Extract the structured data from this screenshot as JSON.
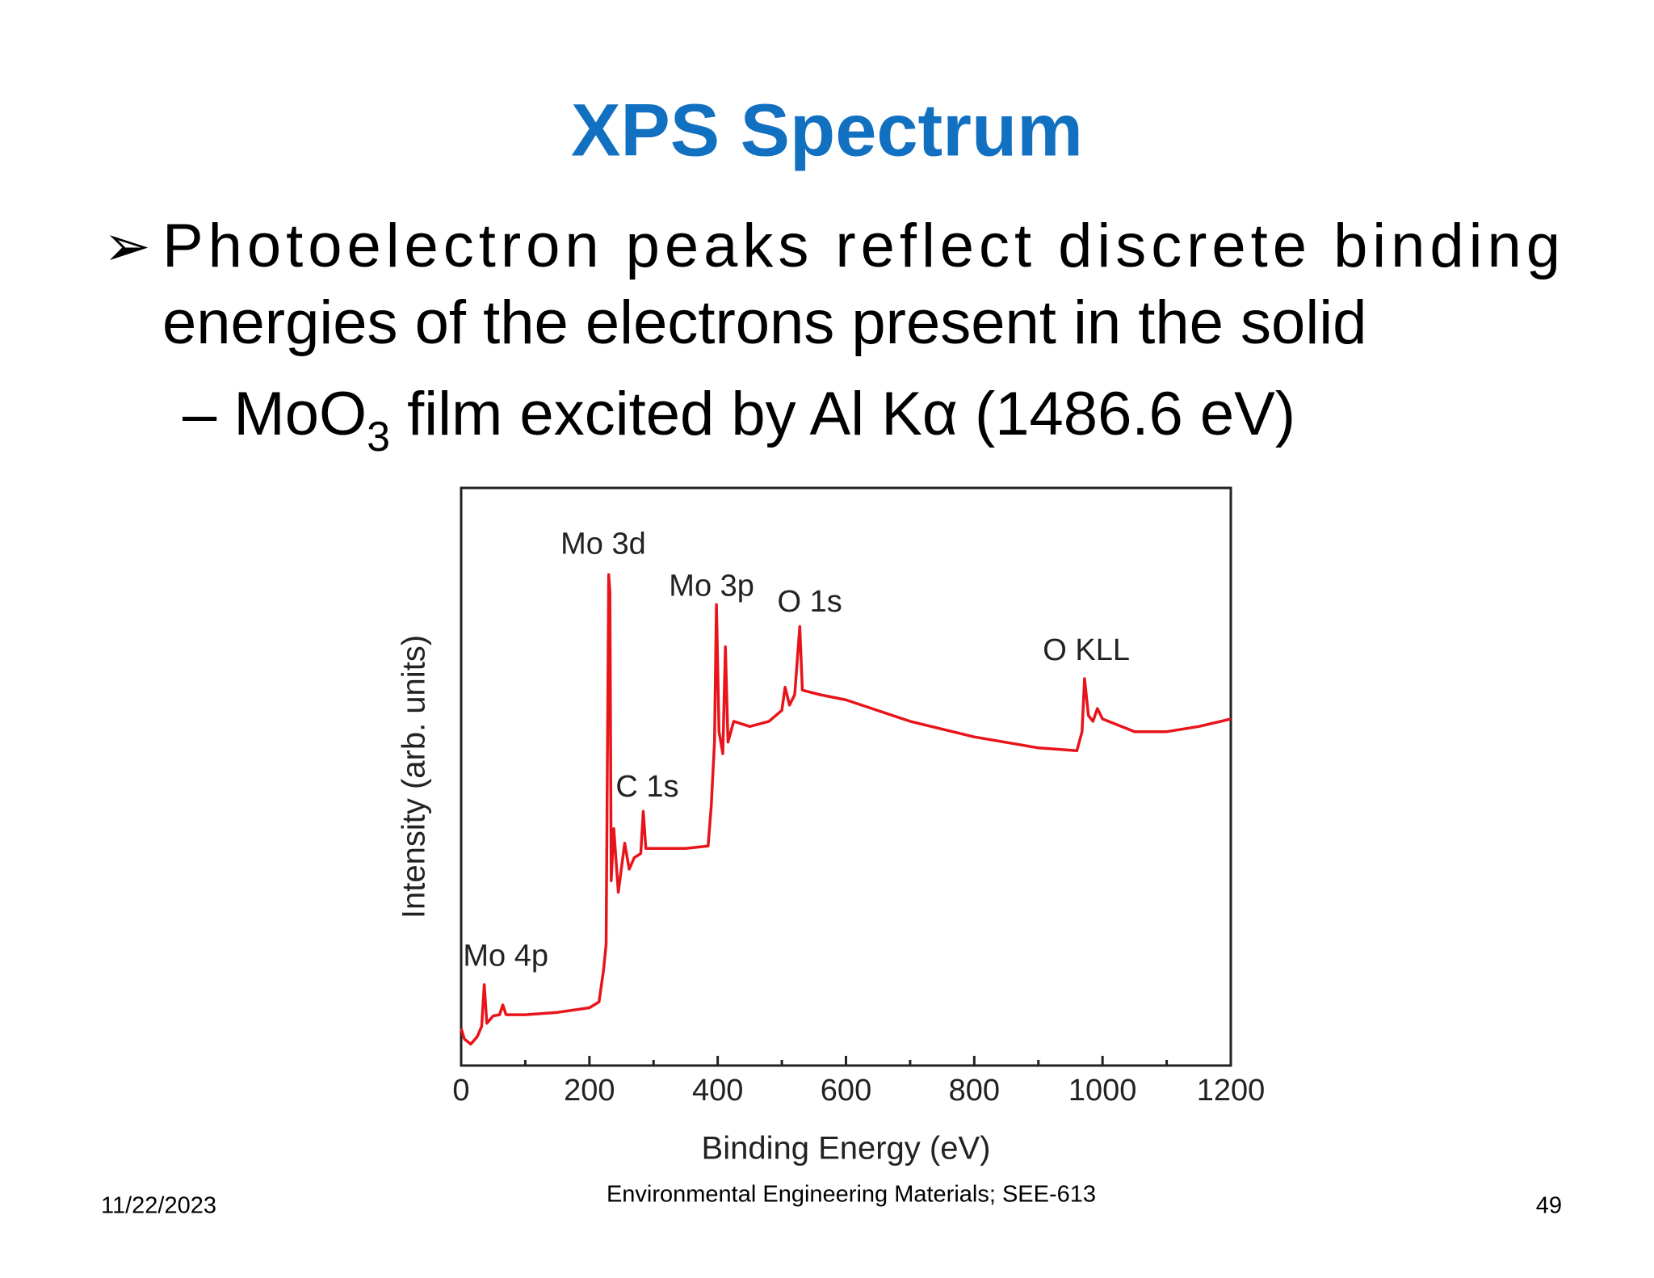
{
  "slide": {
    "title": "XPS Spectrum",
    "bullet": "Photoelectron peaks reflect discrete binding",
    "bullet_cont": "energies of the electrons present in the solid",
    "sub_bullet": {
      "prefix": "– MoO",
      "subscript": "3",
      "suffix": " film excited by Al Kα (1486.6 eV)"
    },
    "footer": {
      "date": "11/22/2023",
      "course": "Environmental Engineering Materials; SEE-613",
      "page": "49"
    }
  },
  "chart_data": {
    "type": "line",
    "xlabel": "Binding Energy (eV)",
    "ylabel": "Intensity (arb. units)",
    "xlim": [
      0,
      1200
    ],
    "ylim": [
      0,
      100
    ],
    "xticks": [
      0,
      200,
      400,
      600,
      800,
      1000,
      1200
    ],
    "xticks_minor": [
      100,
      300,
      500,
      700,
      900,
      1100
    ],
    "color": "#e8141a",
    "x": [
      0,
      5,
      15,
      25,
      32,
      36,
      40,
      50,
      60,
      65,
      70,
      100,
      150,
      200,
      215,
      222,
      226,
      230,
      232,
      234,
      238,
      245,
      255,
      262,
      270,
      280,
      284,
      288,
      300,
      350,
      385,
      390,
      395,
      398,
      402,
      408,
      412,
      416,
      425,
      450,
      480,
      500,
      505,
      512,
      520,
      528,
      532,
      560,
      600,
      700,
      800,
      900,
      960,
      968,
      972,
      978,
      985,
      992,
      1000,
      1050,
      1100,
      1150,
      1200
    ],
    "values": [
      6.4,
      4.6,
      3.7,
      5,
      6.8,
      14,
      7.3,
      8.6,
      8.8,
      10.5,
      8.8,
      8.8,
      9.2,
      10,
      11,
      16.5,
      21,
      85,
      82,
      32,
      41,
      30,
      38.5,
      34,
      36,
      36.7,
      44,
      37.6,
      37.6,
      37.6,
      38,
      45,
      56,
      79.8,
      57.8,
      54,
      72.5,
      56,
      59.6,
      58.7,
      59.6,
      61.5,
      65.5,
      62.4,
      64.2,
      76,
      65,
      64.2,
      63.3,
      59.6,
      56.9,
      55,
      54.5,
      57.8,
      67,
      60.6,
      59.6,
      61.8,
      60,
      57.8,
      57.8,
      58.7,
      60
    ],
    "annotations": [
      {
        "text": "Mo 4p",
        "x": 3,
        "y": 18.7
      },
      {
        "text": "Mo 3d",
        "x": 155,
        "y": 90
      },
      {
        "text": "C 1s",
        "x": 241,
        "y": 48
      },
      {
        "text": "Mo 3p",
        "x": 324,
        "y": 82.7
      },
      {
        "text": "O 1s",
        "x": 493,
        "y": 80
      },
      {
        "text": "O KLL",
        "x": 907,
        "y": 71.6
      }
    ]
  }
}
